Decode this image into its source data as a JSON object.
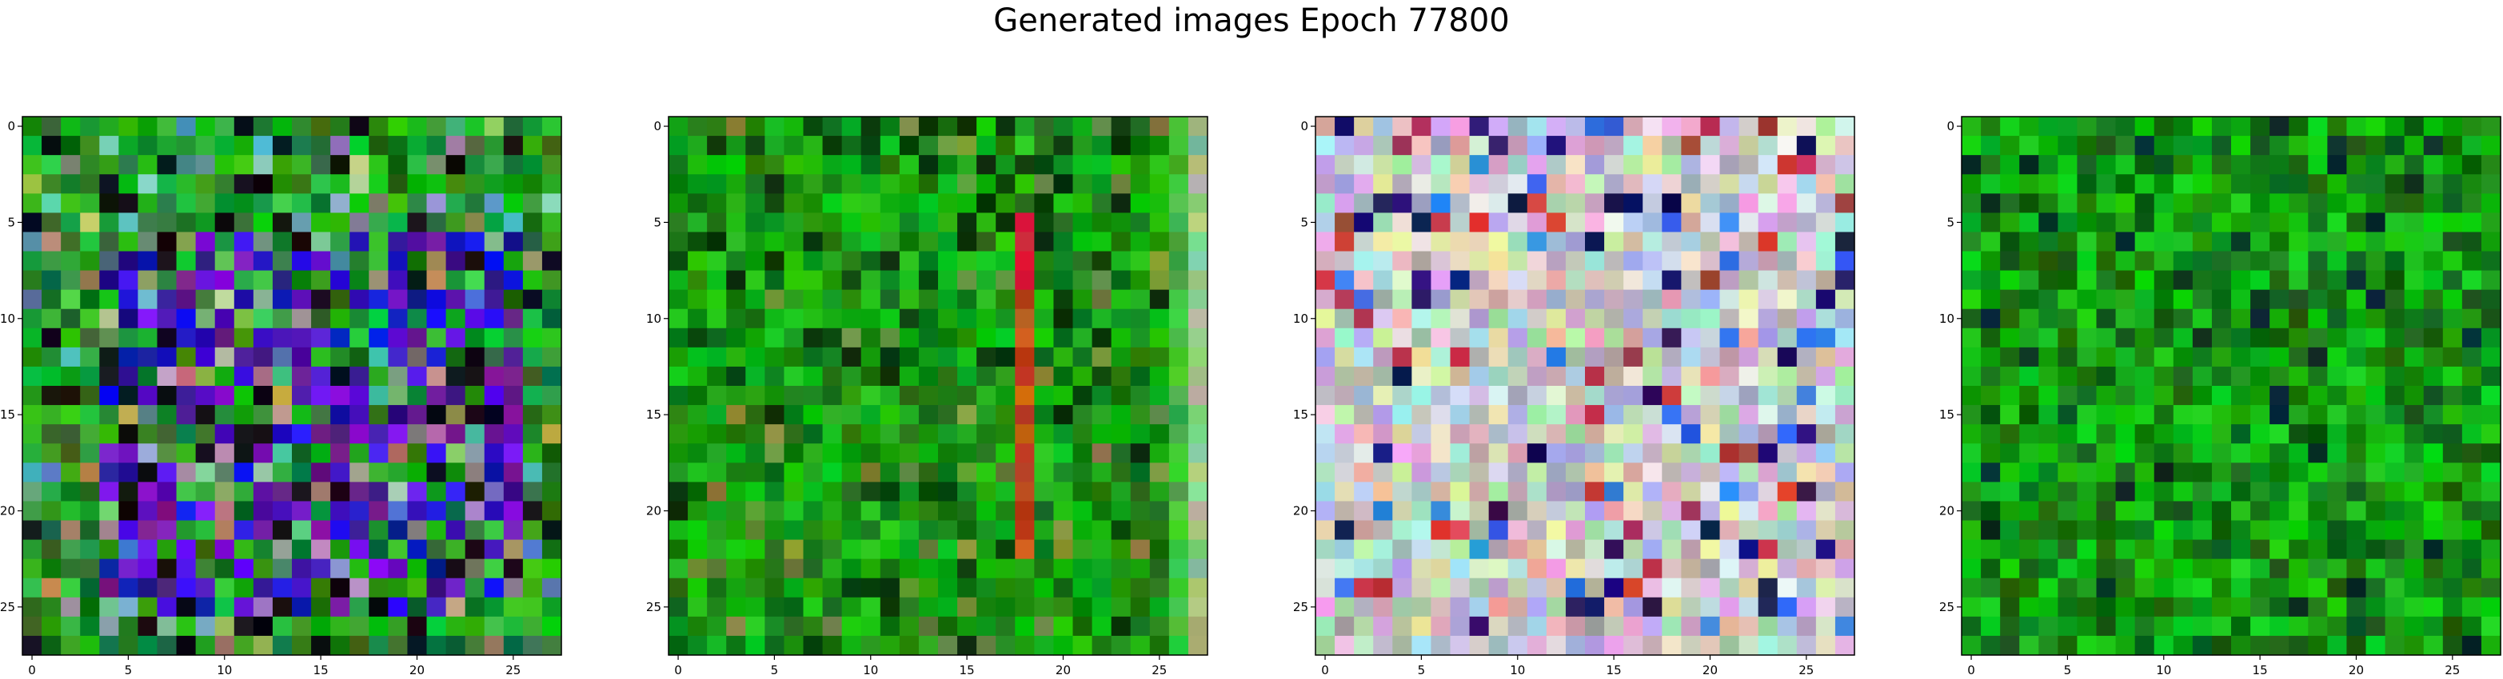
{
  "figure": {
    "title": "Generated images Epoch 77800"
  },
  "chart_data": [
    {
      "type": "heatmap",
      "image_size": 28,
      "palette": "blue-purple-green noise",
      "seed": 11,
      "xlim": [
        -0.5,
        27.5
      ],
      "ylim": [
        27.5,
        -0.5
      ],
      "xticks": [
        0,
        5,
        10,
        15,
        20,
        25
      ],
      "yticks": [
        0,
        5,
        10,
        15,
        20,
        25
      ],
      "xlabel": "",
      "ylabel": ""
    },
    {
      "type": "heatmap",
      "image_size": 28,
      "palette": "green with red vertical stripe at column 18 and pale right edge",
      "seed": 23,
      "xlim": [
        -0.5,
        27.5
      ],
      "ylim": [
        27.5,
        -0.5
      ],
      "xticks": [
        0,
        5,
        10,
        15,
        20,
        25
      ],
      "yticks": [
        0,
        5,
        10,
        15,
        20,
        25
      ],
      "xlabel": "",
      "ylabel": ""
    },
    {
      "type": "heatmap",
      "image_size": 28,
      "palette": "pastel multicolor noise",
      "seed": 37,
      "xlim": [
        -0.5,
        27.5
      ],
      "ylim": [
        27.5,
        -0.5
      ],
      "xticks": [
        0,
        5,
        10,
        15,
        20,
        25
      ],
      "yticks": [
        0,
        5,
        10,
        15,
        20,
        25
      ],
      "xlabel": "",
      "ylabel": ""
    },
    {
      "type": "heatmap",
      "image_size": 28,
      "palette": "dark green noise",
      "seed": 51,
      "xlim": [
        -0.5,
        27.5
      ],
      "ylim": [
        27.5,
        -0.5
      ],
      "xticks": [
        0,
        5,
        10,
        15,
        20,
        25
      ],
      "yticks": [
        0,
        5,
        10,
        15,
        20,
        25
      ],
      "xlabel": "",
      "ylabel": ""
    }
  ]
}
